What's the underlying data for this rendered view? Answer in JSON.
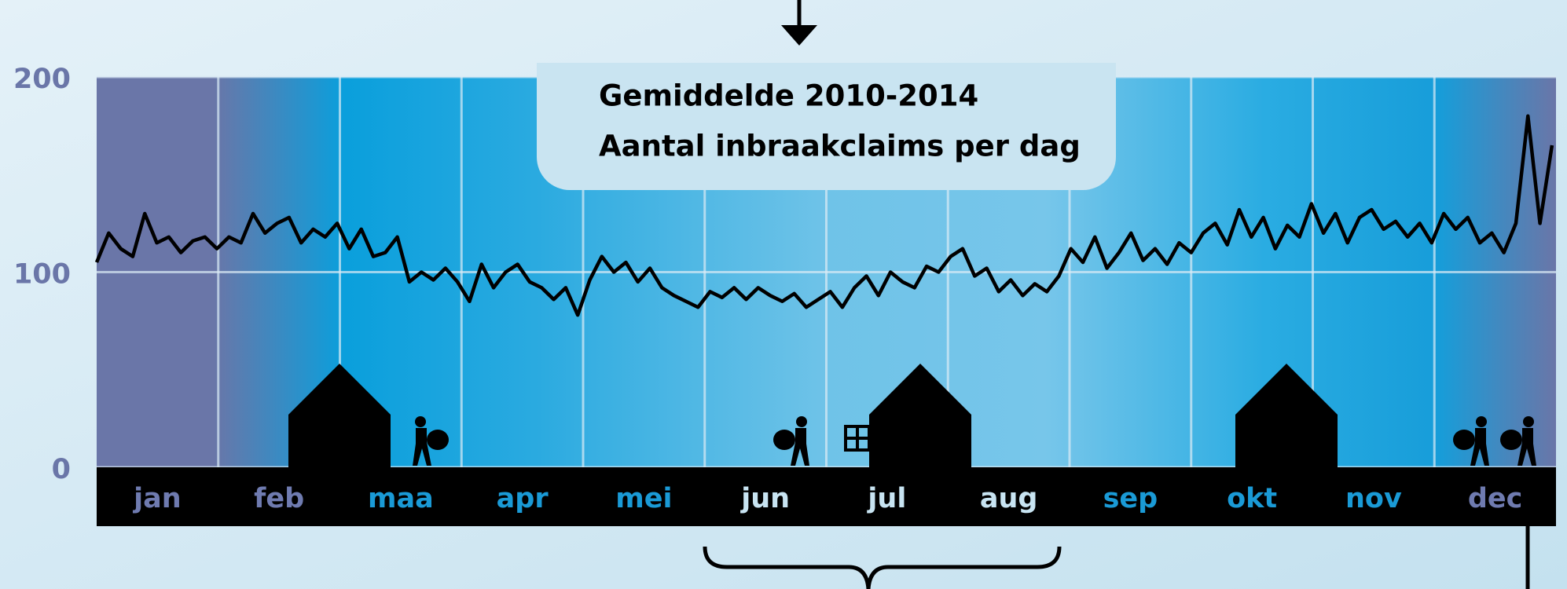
{
  "chart_data": {
    "type": "line",
    "title": "Gemiddelde 2010-2014",
    "subtitle": "Aantal inbraakclaims per dag",
    "months": [
      "jan",
      "feb",
      "maa",
      "apr",
      "mei",
      "jun",
      "jul",
      "aug",
      "sep",
      "okt",
      "nov",
      "dec"
    ],
    "x": [
      1,
      4,
      7,
      10,
      13,
      16,
      19,
      22,
      25,
      28,
      31,
      34,
      37,
      40,
      43,
      46,
      49,
      52,
      55,
      58,
      61,
      64,
      67,
      70,
      73,
      76,
      79,
      82,
      85,
      88,
      91,
      94,
      97,
      100,
      103,
      106,
      109,
      112,
      115,
      118,
      121,
      124,
      127,
      130,
      133,
      136,
      139,
      142,
      145,
      148,
      151,
      154,
      157,
      160,
      163,
      166,
      169,
      172,
      175,
      178,
      181,
      184,
      187,
      190,
      193,
      196,
      199,
      202,
      205,
      208,
      211,
      214,
      217,
      220,
      223,
      226,
      229,
      232,
      235,
      238,
      241,
      244,
      247,
      250,
      253,
      256,
      259,
      262,
      265,
      268,
      271,
      274,
      277,
      280,
      283,
      286,
      289,
      292,
      295,
      298,
      301,
      304,
      307,
      310,
      313,
      316,
      319,
      322,
      325,
      328,
      331,
      334,
      337,
      340,
      343,
      346,
      349,
      352,
      355,
      358,
      361,
      364
    ],
    "series": [
      {
        "color": "#000000",
        "values": [
          105,
          120,
          112,
          108,
          130,
          115,
          118,
          110,
          116,
          118,
          112,
          118,
          115,
          130,
          120,
          125,
          128,
          115,
          122,
          118,
          125,
          112,
          122,
          108,
          110,
          118,
          95,
          100,
          96,
          102,
          95,
          85,
          104,
          92,
          100,
          104,
          95,
          92,
          86,
          92,
          78,
          96,
          108,
          100,
          105,
          95,
          102,
          92,
          88,
          85,
          82,
          90,
          87,
          92,
          86,
          92,
          88,
          85,
          89,
          82,
          86,
          90,
          82,
          92,
          98,
          88,
          100,
          95,
          92,
          103,
          100,
          108,
          112,
          98,
          102,
          90,
          96,
          88,
          94,
          90,
          98,
          112,
          105,
          118,
          102,
          110,
          120,
          106,
          112,
          104,
          115,
          110,
          120,
          125,
          114,
          132,
          118,
          128,
          112,
          124,
          118,
          135,
          120,
          130,
          115,
          128,
          132,
          122,
          126,
          118,
          125,
          115,
          130,
          122,
          128,
          115,
          120,
          110,
          125,
          180,
          125,
          165
        ]
      }
    ],
    "xlim": [
      1,
      365
    ],
    "ylim": [
      0,
      200
    ],
    "yticks": [
      0,
      100,
      200
    ],
    "grid": true
  }
}
